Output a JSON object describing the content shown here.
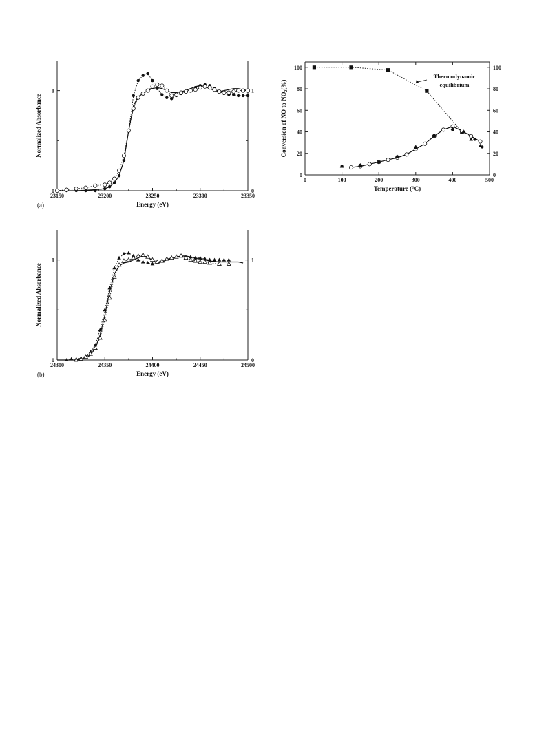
{
  "chart_data": [
    {
      "id": "a",
      "type": "line",
      "panel_label": "(a)",
      "xlabel": "Energy (eV)",
      "ylabel": "Normalized Absorbance",
      "xlim": [
        23150,
        23350
      ],
      "ylim": [
        0,
        1.3
      ],
      "xticks": [
        23150,
        23200,
        23250,
        23300,
        23350
      ],
      "yticks": [
        0,
        1
      ],
      "right_yticks": [
        0,
        1
      ],
      "series": [
        {
          "style": "solid",
          "x": [
            23150,
            23170,
            23190,
            23200,
            23205,
            23210,
            23215,
            23220,
            23225,
            23230,
            23235,
            23240,
            23245,
            23250,
            23255,
            23260,
            23265,
            23270,
            23275,
            23280,
            23285,
            23290,
            23295,
            23300,
            23305,
            23310,
            23315,
            23320,
            23325,
            23330,
            23335,
            23340,
            23345,
            23350
          ],
          "y": [
            0.0,
            0.0,
            0.01,
            0.02,
            0.04,
            0.08,
            0.15,
            0.3,
            0.6,
            0.85,
            0.94,
            0.97,
            1.0,
            1.02,
            1.03,
            1.02,
            1.0,
            0.98,
            0.98,
            0.99,
            1.0,
            1.02,
            1.04,
            1.05,
            1.04,
            1.02,
            1.0,
            0.99,
            1.0,
            1.01,
            1.02,
            1.02,
            1.01,
            1.0
          ]
        },
        {
          "style": "dotted",
          "marker": "filled-circle",
          "x": [
            23150,
            23160,
            23170,
            23180,
            23190,
            23200,
            23205,
            23210,
            23215,
            23220,
            23225,
            23230,
            23235,
            23240,
            23245,
            23250,
            23255,
            23260,
            23265,
            23270,
            23275,
            23280,
            23285,
            23290,
            23295,
            23300,
            23305,
            23310,
            23315,
            23320,
            23325,
            23330,
            23335,
            23340,
            23345,
            23350
          ],
          "y": [
            0.0,
            0.0,
            0.0,
            0.0,
            0.0,
            0.02,
            0.04,
            0.08,
            0.15,
            0.3,
            0.6,
            0.95,
            1.1,
            1.15,
            1.17,
            1.1,
            1.02,
            0.96,
            0.93,
            0.92,
            0.95,
            0.97,
            0.99,
            1.01,
            1.03,
            1.05,
            1.06,
            1.05,
            1.02,
            0.99,
            0.97,
            0.96,
            0.96,
            0.95,
            0.95,
            0.95
          ]
        },
        {
          "style": "dotted",
          "marker": "open-circle",
          "x": [
            23150,
            23160,
            23170,
            23180,
            23190,
            23200,
            23205,
            23210,
            23215,
            23220,
            23225,
            23230,
            23235,
            23240,
            23245,
            23250,
            23255,
            23260,
            23265,
            23270,
            23275,
            23280,
            23285,
            23290,
            23295,
            23300,
            23305,
            23310,
            23315,
            23320,
            23325,
            23330,
            23335,
            23340,
            23345,
            23350
          ],
          "y": [
            0.0,
            0.01,
            0.02,
            0.03,
            0.05,
            0.06,
            0.08,
            0.12,
            0.2,
            0.35,
            0.6,
            0.82,
            0.93,
            0.97,
            1.0,
            1.04,
            1.06,
            1.05,
            1.0,
            0.95,
            0.96,
            0.98,
            0.99,
            1.0,
            1.01,
            1.03,
            1.04,
            1.03,
            1.01,
            0.99,
            0.98,
            0.98,
            0.99,
            1.0,
            1.0,
            1.0
          ]
        }
      ]
    },
    {
      "id": "b",
      "type": "line",
      "panel_label": "(b)",
      "xlabel": "Energy (eV)",
      "ylabel": "Normalized Absorbance",
      "xlim": [
        24300,
        24500
      ],
      "ylim": [
        0,
        1.3
      ],
      "xticks": [
        24300,
        24350,
        24400,
        24450,
        24500
      ],
      "yticks": [
        0,
        1
      ],
      "right_yticks": [
        0,
        1
      ],
      "series": [
        {
          "style": "solid",
          "x": [
            24300,
            24310,
            24320,
            24330,
            24335,
            24340,
            24345,
            24350,
            24355,
            24360,
            24365,
            24370,
            24375,
            24380,
            24385,
            24390,
            24395,
            24400,
            24405,
            24410,
            24415,
            24420,
            24425,
            24430,
            24435,
            24440,
            24450,
            24460,
            24470,
            24480,
            24490,
            24495
          ],
          "y": [
            0.0,
            0.0,
            0.0,
            0.02,
            0.05,
            0.12,
            0.25,
            0.45,
            0.68,
            0.86,
            0.94,
            0.97,
            0.98,
            1.0,
            1.02,
            1.04,
            1.03,
            0.99,
            0.97,
            0.98,
            1.0,
            1.02,
            1.03,
            1.04,
            1.04,
            1.03,
            1.01,
            0.99,
            0.98,
            0.98,
            0.98,
            0.97
          ]
        },
        {
          "style": "dotted",
          "marker": "filled-triangle",
          "x": [
            24310,
            24315,
            24320,
            24325,
            24330,
            24335,
            24340,
            24345,
            24350,
            24355,
            24360,
            24365,
            24370,
            24375,
            24380,
            24385,
            24390,
            24395,
            24400,
            24405,
            24410,
            24415,
            24420,
            24425,
            24430,
            24435,
            24440,
            24445,
            24450,
            24455,
            24460,
            24465,
            24470,
            24475,
            24480
          ],
          "y": [
            0.0,
            0.01,
            0.01,
            0.02,
            0.04,
            0.08,
            0.15,
            0.3,
            0.5,
            0.72,
            0.92,
            1.02,
            1.06,
            1.07,
            1.04,
            1.0,
            0.98,
            0.97,
            0.96,
            0.97,
            0.99,
            1.01,
            1.02,
            1.03,
            1.04,
            1.03,
            1.03,
            1.02,
            1.02,
            1.01,
            1.0,
            1.0,
            1.0,
            1.0,
            1.0
          ]
        },
        {
          "style": "dotted",
          "marker": "open-triangle",
          "x": [
            24320,
            24325,
            24330,
            24335,
            24340,
            24345,
            24350,
            24355,
            24360,
            24365,
            24370,
            24375,
            24380,
            24385,
            24390,
            24395,
            24400,
            24405,
            24410,
            24415,
            24420,
            24425,
            24430,
            24435,
            24440,
            24445,
            24450,
            24455,
            24460,
            24470,
            24480
          ],
          "y": [
            0.0,
            0.01,
            0.03,
            0.06,
            0.12,
            0.22,
            0.4,
            0.62,
            0.83,
            0.95,
            0.99,
            1.0,
            1.02,
            1.04,
            1.05,
            1.03,
            1.0,
            0.98,
            0.99,
            1.01,
            1.02,
            1.03,
            1.04,
            1.02,
            1.0,
            0.99,
            0.98,
            0.98,
            0.97,
            0.96,
            0.96
          ]
        }
      ]
    },
    {
      "id": "c",
      "type": "scatter",
      "xlabel": "Temperature (°C)",
      "ylabel": "Conversion of NO to NO₂(%)",
      "xlim": [
        0,
        500
      ],
      "ylim": [
        0,
        105
      ],
      "xticks": [
        0,
        100,
        200,
        300,
        400,
        500
      ],
      "yticks": [
        0,
        20,
        40,
        60,
        80,
        100
      ],
      "right_yticks": [
        0,
        20,
        40,
        60,
        80,
        100
      ],
      "annotation": [
        "Thermodynamic",
        "equilibrium"
      ],
      "series": [
        {
          "style": "dotted",
          "marker": "filled-square",
          "x": [
            25,
            125,
            225,
            330,
            425
          ],
          "y": [
            100,
            100,
            97.5,
            78,
            40
          ]
        },
        {
          "style": "solid",
          "marker": "open-circle",
          "x": [
            125,
            150,
            175,
            200,
            225,
            250,
            275,
            300,
            325,
            350,
            375,
            400,
            425,
            450,
            475
          ],
          "y": [
            7,
            8,
            10,
            12,
            14,
            16,
            19,
            24,
            29,
            36,
            42,
            45,
            41,
            36,
            31
          ]
        },
        {
          "style": "none",
          "marker": "filled-triangle",
          "x": [
            100,
            150,
            200,
            250,
            300,
            350,
            400,
            450,
            475
          ],
          "y": [
            8,
            9,
            12,
            17,
            26,
            37,
            43,
            33,
            27
          ]
        },
        {
          "style": "none",
          "marker": "filled-circle",
          "x": [
            100,
            150,
            200,
            250,
            300,
            350,
            400,
            430,
            460,
            480
          ],
          "y": [
            8,
            9,
            12,
            17,
            25,
            36,
            42,
            40,
            33,
            26
          ]
        }
      ]
    }
  ]
}
